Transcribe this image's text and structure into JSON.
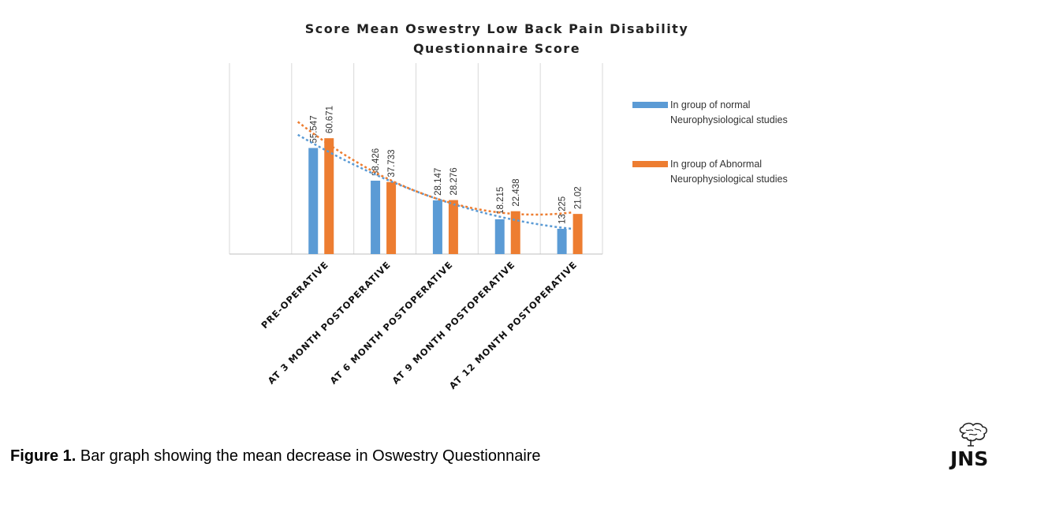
{
  "chart_data": {
    "type": "bar",
    "title_lines": [
      "Score Mean Oswestry Low Back Pain Disability",
      "Questionnaire Score"
    ],
    "categories": [
      "PRE-OPERATIVE",
      "AT 3 MONTH POSTOPERATIVE",
      "AT 6 MONTH POSTOPERATIVE",
      "AT 9 MONTH POSTOPERATIVE",
      "AT 12 MONTH POSTOPERATIVE"
    ],
    "series": [
      {
        "name": "In group of normal Neurophysiological studies",
        "legend_lines": [
          "In group of normal",
          "Neurophysiological studies"
        ],
        "color": "#5B9BD5",
        "values": [
          55.547,
          38.426,
          28.147,
          18.215,
          13.225
        ],
        "labels": [
          "55.547",
          "38.426",
          "28.147",
          "18.215",
          "13.225"
        ]
      },
      {
        "name": "In group of Abnormal Neurophysiological studies",
        "legend_lines": [
          "In group of Abnormal",
          "Neurophysiological studies"
        ],
        "color": "#ED7D31",
        "values": [
          60.671,
          37.733,
          28.276,
          22.438,
          21.02
        ],
        "labels": [
          "60.671",
          "37.733",
          "28.276",
          "22.438",
          "21.02"
        ]
      }
    ],
    "trendlines": "polynomial, dashed, one per series",
    "ylim": [
      0,
      100
    ],
    "grid": "vertical lines between categories",
    "legend_position": "right"
  },
  "caption": {
    "label": "Figure 1.",
    "text": " Bar graph showing the mean decrease in Oswestry Questionnaire"
  },
  "logo": {
    "text": "JNS",
    "icon": "brain-logo-icon"
  }
}
